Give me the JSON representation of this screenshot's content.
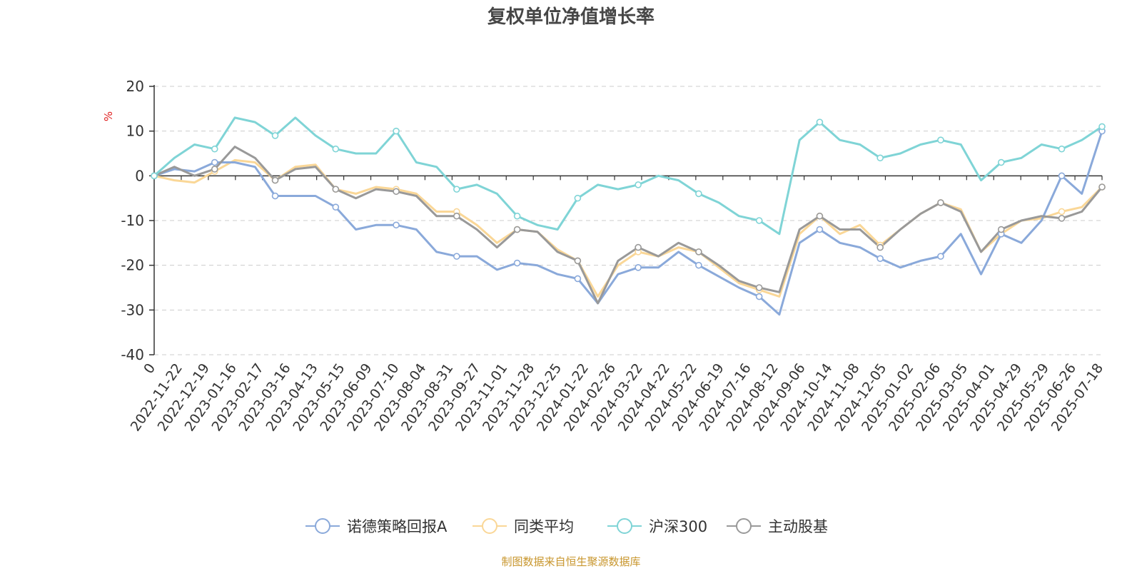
{
  "chart_data": {
    "type": "line",
    "title": "复权单位净值增长率",
    "ylabel": "%",
    "ylim": [
      -40,
      20
    ],
    "yticks": [
      20,
      10,
      0,
      -10,
      -20,
      -30,
      -40
    ],
    "grid": true,
    "legend_position": "bottom",
    "source_note": "制图数据来自恒生聚源数据库",
    "x_tick_labels": [
      "0",
      "2022-11-22",
      "2022-12-19",
      "2023-01-16",
      "2023-02-17",
      "2023-03-16",
      "2023-04-13",
      "2023-05-15",
      "2023-06-09",
      "2023-07-10",
      "2023-08-04",
      "2023-08-31",
      "2023-09-27",
      "2023-11-01",
      "2023-11-28",
      "2023-12-25",
      "2024-01-22",
      "2024-02-26",
      "2024-03-22",
      "2024-04-22",
      "2024-05-22",
      "2024-06-19",
      "2024-07-16",
      "2024-08-12",
      "2024-09-06",
      "2024-10-14",
      "2024-11-08",
      "2024-12-05",
      "2025-01-02",
      "2025-02-06",
      "2025-03-05",
      "2025-04-01",
      "2025-04-29",
      "2025-05-29",
      "2025-06-26",
      "2025-07-18"
    ],
    "series": [
      {
        "name": "诺德策略回报A",
        "color": "#8aa9da",
        "values": [
          0,
          1.5,
          1,
          3,
          3,
          2,
          -4.5,
          -4.5,
          -4.5,
          -7,
          -12,
          -11,
          -11,
          -12,
          -17,
          -18,
          -18,
          -21,
          -19.5,
          -20,
          -22,
          -23,
          -28.5,
          -22,
          -20.5,
          -20.5,
          -17,
          -20,
          -22.5,
          -25,
          -27,
          -31,
          -15,
          -12,
          -15,
          -16,
          -18.5,
          -20.5,
          -19,
          -18,
          -13,
          -22,
          -13,
          -15,
          -10,
          0,
          -4,
          10
        ]
      },
      {
        "name": "同类平均",
        "color": "#fad797",
        "values": [
          0,
          -1,
          -1.5,
          1,
          3.5,
          3,
          -1,
          2,
          2.5,
          -3,
          -4,
          -2.5,
          -3,
          -4,
          -8,
          -8,
          -11,
          -15,
          -12,
          -12.5,
          -16.5,
          -19,
          -27,
          -20,
          -17,
          -18,
          -16,
          -17,
          -20.5,
          -24,
          -25.5,
          -27,
          -13,
          -9,
          -13,
          -11,
          -15.5,
          -12,
          -8.5,
          -6,
          -7.5,
          -17,
          -13,
          -10,
          -9.5,
          -8,
          -7,
          -2.5
        ]
      },
      {
        "name": "沪深300",
        "color": "#7fd4d6",
        "values": [
          0,
          4,
          7,
          6,
          13,
          12,
          9,
          13,
          9,
          6,
          5,
          5,
          10,
          3,
          2,
          -3,
          -2,
          -4,
          -9,
          -11,
          -12,
          -5,
          -2,
          -3,
          -2,
          0,
          -1,
          -4,
          -6,
          -9,
          -10,
          -13,
          8,
          12,
          8,
          7,
          4,
          5,
          7,
          8,
          7,
          -1,
          3,
          4,
          7,
          6,
          8,
          11
        ]
      },
      {
        "name": "主动股基",
        "color": "#999999",
        "values": [
          0,
          2,
          0,
          1.5,
          6.5,
          4,
          -1,
          1.5,
          2,
          -3,
          -5,
          -3,
          -3.5,
          -4.5,
          -9,
          -9,
          -12,
          -16,
          -12,
          -12.5,
          -17,
          -19,
          -28.5,
          -19,
          -16,
          -18,
          -15,
          -17,
          -20,
          -23.5,
          -25,
          -26,
          -12,
          -9,
          -12,
          -12,
          -16,
          -12,
          -8.5,
          -6,
          -8,
          -17,
          -12,
          -10,
          -9,
          -9.5,
          -8,
          -2.5
        ]
      }
    ]
  }
}
